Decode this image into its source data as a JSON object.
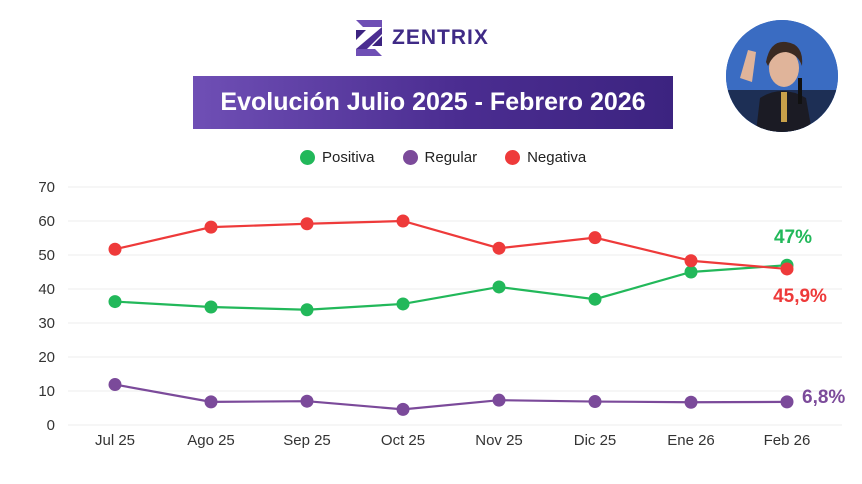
{
  "brand": {
    "name": "ZENTRIX",
    "logo_icon": "zentrix-logo-icon"
  },
  "header": {
    "title": "Evolución Julio 2025 - Febrero 2026"
  },
  "photo": {
    "icon": "person-photo"
  },
  "colors": {
    "positiva": "#22b85a",
    "regular": "#7b4a9a",
    "negativa": "#ee3a3a",
    "banner": "#4b2d91"
  },
  "chart_data": {
    "type": "line",
    "title": "Evolución Julio 2025 - Febrero 2026",
    "categories": [
      "Jul 25",
      "Ago 25",
      "Sep 25",
      "Oct 25",
      "Nov 25",
      "Dic 25",
      "Ene 26",
      "Feb 26"
    ],
    "series": [
      {
        "name": "Positiva",
        "values": [
          36.3,
          34.7,
          33.9,
          35.6,
          40.6,
          37.0,
          45.0,
          47.0
        ],
        "color": "#22b85a",
        "end_label": "47%"
      },
      {
        "name": "Regular",
        "values": [
          11.9,
          6.8,
          7.0,
          4.6,
          7.3,
          6.9,
          6.7,
          6.8
        ],
        "color": "#7b4a9a",
        "end_label": "6,8%"
      },
      {
        "name": "Negativa",
        "values": [
          51.7,
          58.2,
          59.2,
          60.0,
          52.0,
          55.1,
          48.3,
          45.9
        ],
        "color": "#ee3a3a",
        "end_label": "45,9%"
      }
    ],
    "ylim": [
      0,
      70
    ],
    "yticks": [
      0,
      10,
      20,
      30,
      40,
      50,
      60,
      70
    ],
    "grid": true,
    "legend_position": "top-center"
  }
}
